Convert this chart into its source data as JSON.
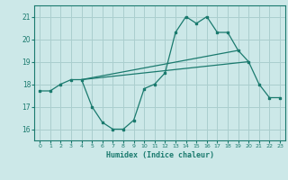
{
  "xlabel": "Humidex (Indice chaleur)",
  "x": [
    0,
    1,
    2,
    3,
    4,
    5,
    6,
    7,
    8,
    9,
    10,
    11,
    12,
    13,
    14,
    15,
    16,
    17,
    18,
    19,
    20,
    21,
    22,
    23
  ],
  "line_data": [
    17.7,
    17.7,
    18.0,
    18.2,
    18.2,
    17.0,
    16.3,
    16.0,
    16.0,
    16.4,
    17.8,
    18.0,
    18.5,
    20.3,
    21.0,
    20.7,
    21.0,
    20.3,
    20.3,
    19.5,
    19.0,
    18.0,
    17.4,
    17.4
  ],
  "trend1_start_x": 4,
  "trend1_start_y": 18.2,
  "trend1_end_x": 19,
  "trend1_end_y": 19.5,
  "trend2_start_x": 4,
  "trend2_start_y": 18.2,
  "trend2_end_x": 20,
  "trend2_end_y": 19.0,
  "color": "#1a7a6e",
  "bg_color": "#cce8e8",
  "grid_color": "#aacece",
  "ylim": [
    15.5,
    21.5
  ],
  "xlim": [
    -0.5,
    23.5
  ],
  "yticks": [
    16,
    17,
    18,
    19,
    20,
    21
  ],
  "xticks": [
    0,
    1,
    2,
    3,
    4,
    5,
    6,
    7,
    8,
    9,
    10,
    11,
    12,
    13,
    14,
    15,
    16,
    17,
    18,
    19,
    20,
    21,
    22,
    23
  ]
}
